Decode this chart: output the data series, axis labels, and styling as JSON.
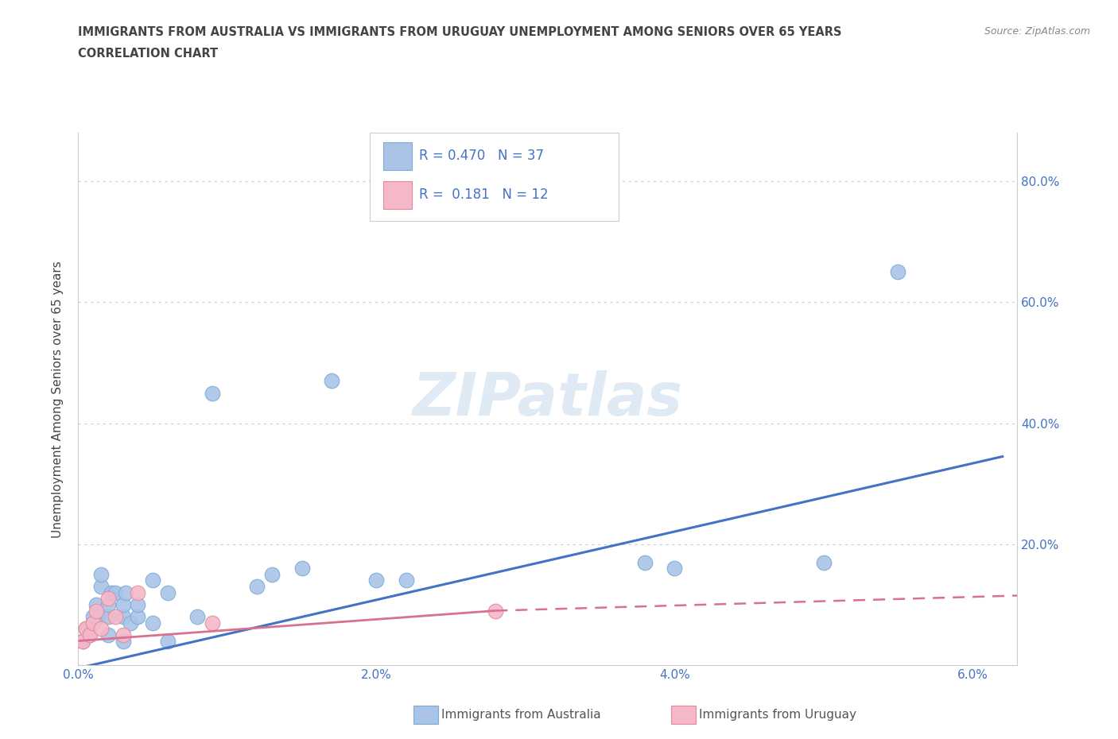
{
  "title_line1": "IMMIGRANTS FROM AUSTRALIA VS IMMIGRANTS FROM URUGUAY UNEMPLOYMENT AMONG SENIORS OVER 65 YEARS",
  "title_line2": "CORRELATION CHART",
  "source": "Source: ZipAtlas.com",
  "ylabel": "Unemployment Among Seniors over 65 years",
  "xlim": [
    0.0,
    0.063
  ],
  "ylim": [
    0.0,
    0.88
  ],
  "xticks": [
    0.0,
    0.01,
    0.02,
    0.03,
    0.04,
    0.05,
    0.06
  ],
  "xticklabels": [
    "0.0%",
    "",
    "2.0%",
    "",
    "4.0%",
    "",
    "6.0%"
  ],
  "yticks": [
    0.0,
    0.2,
    0.4,
    0.6,
    0.8
  ],
  "yticklabels_right": [
    "",
    "20.0%",
    "40.0%",
    "60.0%",
    "80.0%"
  ],
  "australia_color": "#aac4e8",
  "australia_edge": "#7aacd6",
  "uruguay_color": "#f5b8c8",
  "uruguay_edge": "#e8889a",
  "australia_R": 0.47,
  "australia_N": 37,
  "uruguay_R": 0.181,
  "uruguay_N": 12,
  "legend_R_color": "#4472c4",
  "line_color_australia": "#4472c4",
  "line_color_uruguay": "#d87090",
  "grid_color": "#cccccc",
  "title_color": "#444444",
  "axis_label_color": "#444444",
  "tick_color_right": "#4472c4",
  "tick_color_bottom": "#4472c4",
  "watermark": "ZIPatlas",
  "aus_line_x0": 0.0,
  "aus_line_y0": -0.005,
  "aus_line_x1": 0.062,
  "aus_line_y1": 0.345,
  "uru_line_solid_x0": 0.0,
  "uru_line_solid_y0": 0.04,
  "uru_line_solid_x1": 0.028,
  "uru_line_solid_y1": 0.09,
  "uru_line_dash_x0": 0.028,
  "uru_line_dash_y0": 0.09,
  "uru_line_dash_x1": 0.063,
  "uru_line_dash_y1": 0.115,
  "australia_x": [
    0.0003,
    0.0005,
    0.0007,
    0.001,
    0.001,
    0.0012,
    0.0013,
    0.0015,
    0.0015,
    0.002,
    0.002,
    0.002,
    0.0022,
    0.0025,
    0.003,
    0.003,
    0.003,
    0.0032,
    0.0035,
    0.004,
    0.004,
    0.005,
    0.005,
    0.006,
    0.006,
    0.008,
    0.009,
    0.012,
    0.013,
    0.015,
    0.017,
    0.02,
    0.022,
    0.038,
    0.04,
    0.05,
    0.055
  ],
  "australia_y": [
    0.04,
    0.06,
    0.05,
    0.07,
    0.08,
    0.1,
    0.08,
    0.13,
    0.15,
    0.05,
    0.08,
    0.1,
    0.12,
    0.12,
    0.08,
    0.1,
    0.04,
    0.12,
    0.07,
    0.08,
    0.1,
    0.14,
    0.07,
    0.12,
    0.04,
    0.08,
    0.45,
    0.13,
    0.15,
    0.16,
    0.47,
    0.14,
    0.14,
    0.17,
    0.16,
    0.17,
    0.65
  ],
  "uruguay_x": [
    0.0003,
    0.0005,
    0.0008,
    0.001,
    0.0012,
    0.0015,
    0.002,
    0.0025,
    0.003,
    0.004,
    0.009,
    0.028
  ],
  "uruguay_y": [
    0.04,
    0.06,
    0.05,
    0.07,
    0.09,
    0.06,
    0.11,
    0.08,
    0.05,
    0.12,
    0.07,
    0.09
  ]
}
